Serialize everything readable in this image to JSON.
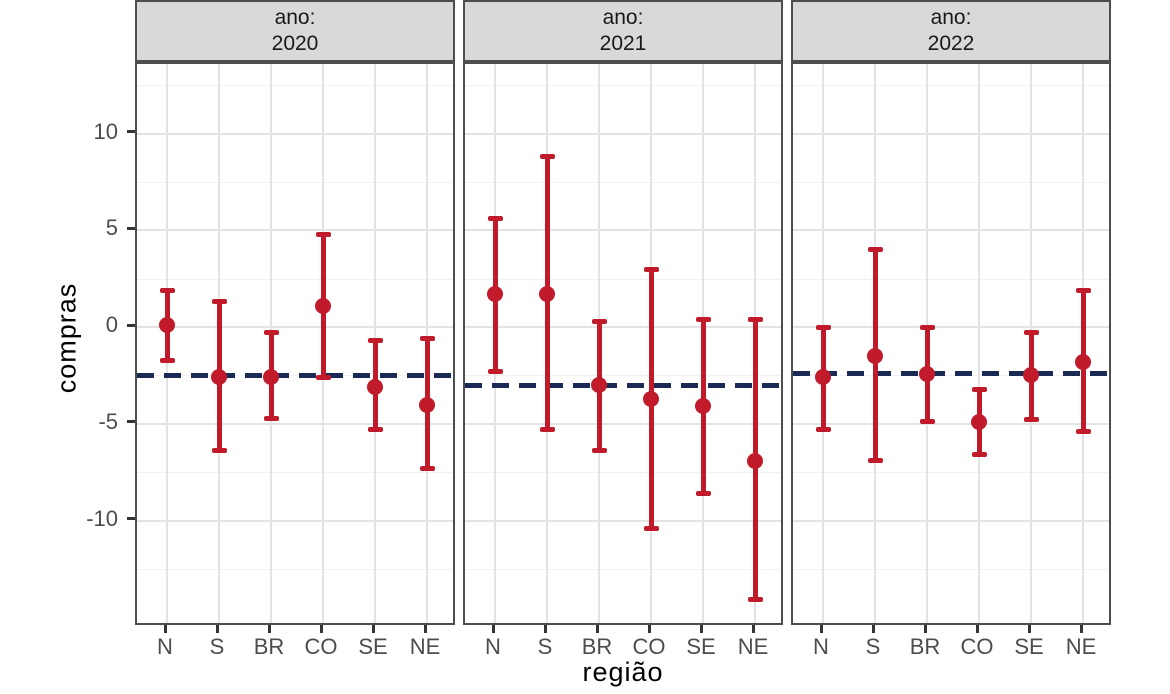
{
  "chart_data": {
    "type": "pointrange",
    "title": "",
    "xlabel": "região",
    "ylabel": "compras",
    "categories": [
      "N",
      "S",
      "BR",
      "CO",
      "SE",
      "NE"
    ],
    "y_ticks": [
      10,
      5,
      0,
      -5,
      -10
    ],
    "y_minor_ticks": [
      12.5,
      7.5,
      2.5,
      -2.5,
      -7.5,
      -12.5
    ],
    "ylim": [
      -15.5,
      13.6
    ],
    "grid": "major and minor horizontal, major vertical at categories",
    "legend": "none",
    "facet_variable": "ano",
    "reference_line_style": "dashed horizontal",
    "facets": [
      {
        "strip_line1": "ano:",
        "strip_line2": "2020",
        "hline": -2.5,
        "points": [
          {
            "category": "N",
            "estimate": 0.1,
            "lower": -1.7,
            "upper": 1.9
          },
          {
            "category": "S",
            "estimate": -2.6,
            "lower": -6.4,
            "upper": 1.3
          },
          {
            "category": "BR",
            "estimate": -2.6,
            "lower": -4.7,
            "upper": -0.3
          },
          {
            "category": "CO",
            "estimate": 1.1,
            "lower": -2.6,
            "upper": 4.8
          },
          {
            "category": "SE",
            "estimate": -3.1,
            "lower": -5.3,
            "upper": -0.7
          },
          {
            "category": "NE",
            "estimate": -4.0,
            "lower": -7.3,
            "upper": -0.6
          }
        ]
      },
      {
        "strip_line1": "ano:",
        "strip_line2": "2021",
        "hline": -3.0,
        "points": [
          {
            "category": "N",
            "estimate": 1.7,
            "lower": -2.3,
            "upper": 5.6
          },
          {
            "category": "S",
            "estimate": 1.7,
            "lower": -5.3,
            "upper": 8.8
          },
          {
            "category": "BR",
            "estimate": -3.0,
            "lower": -6.4,
            "upper": 0.3
          },
          {
            "category": "CO",
            "estimate": -3.7,
            "lower": -10.4,
            "upper": 3.0
          },
          {
            "category": "SE",
            "estimate": -4.1,
            "lower": -8.6,
            "upper": 0.4
          },
          {
            "category": "NE",
            "estimate": -6.9,
            "lower": -14.1,
            "upper": 0.4
          }
        ]
      },
      {
        "strip_line1": "ano:",
        "strip_line2": "2022",
        "hline": -2.4,
        "points": [
          {
            "category": "N",
            "estimate": -2.6,
            "lower": -5.3,
            "upper": 0.0
          },
          {
            "category": "S",
            "estimate": -1.5,
            "lower": -6.9,
            "upper": 4.0
          },
          {
            "category": "BR",
            "estimate": -2.4,
            "lower": -4.9,
            "upper": 0.0
          },
          {
            "category": "CO",
            "estimate": -4.9,
            "lower": -6.6,
            "upper": -3.2
          },
          {
            "category": "SE",
            "estimate": -2.5,
            "lower": -4.8,
            "upper": -0.3
          },
          {
            "category": "NE",
            "estimate": -1.8,
            "lower": -5.4,
            "upper": 1.9
          }
        ]
      }
    ],
    "colors": {
      "pointrange": "#C11B2B",
      "reference_line": "#1B2A55",
      "strip_fill": "#D9D9D9",
      "panel_border": "#4D4D4D",
      "grid_major": "#E3E3E3",
      "grid_minor": "#F1F1F1",
      "tick_text": "#4D4D4D"
    }
  }
}
